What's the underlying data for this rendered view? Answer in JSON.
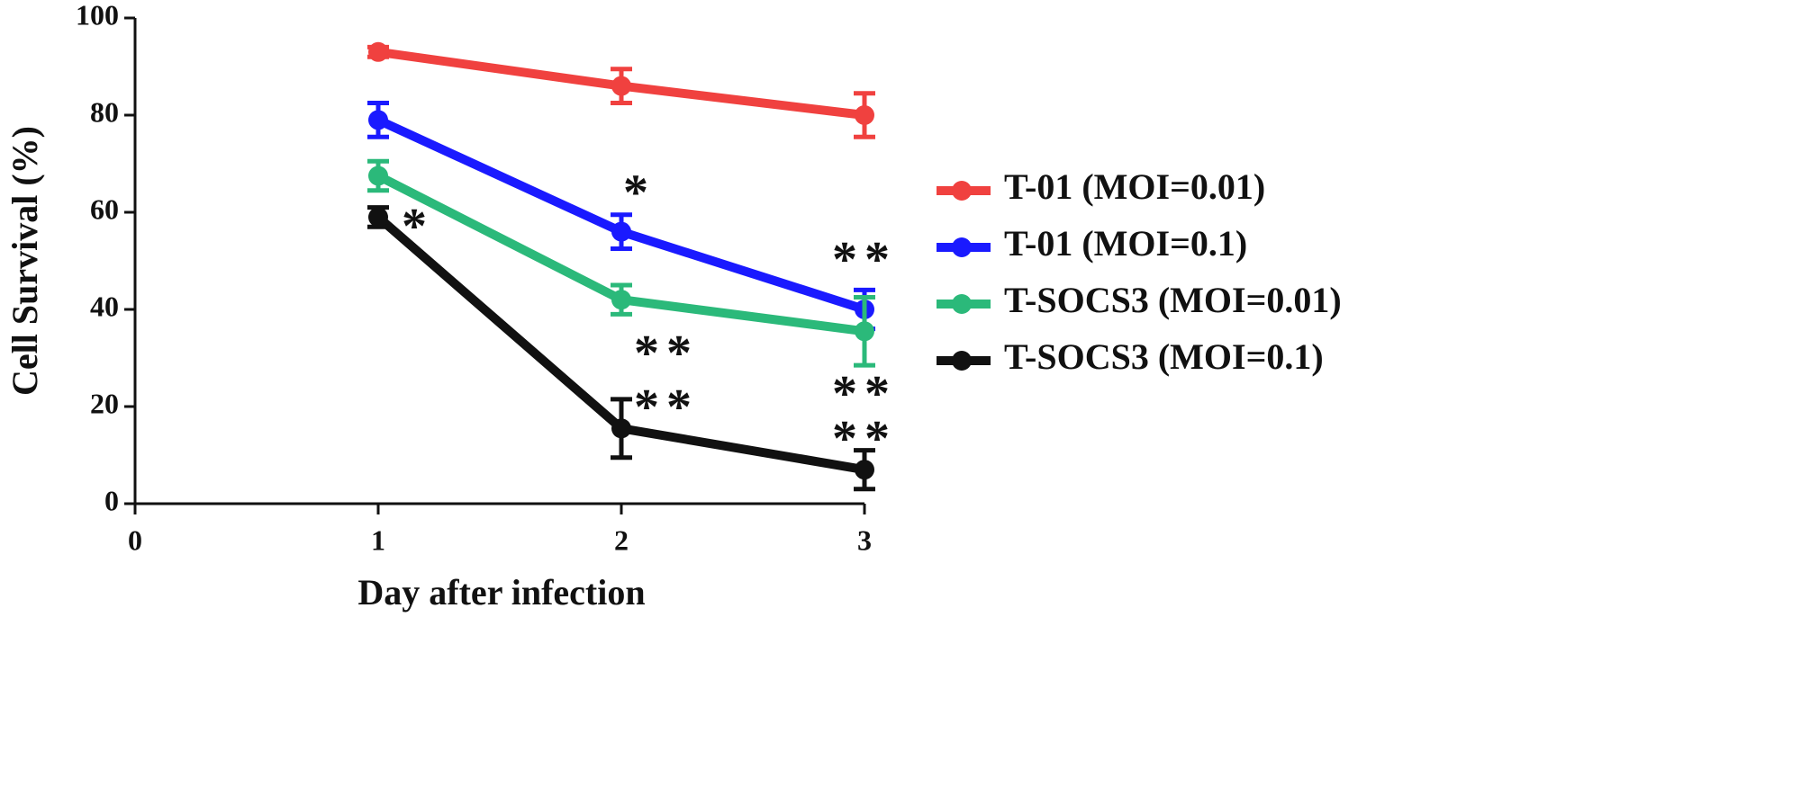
{
  "chart_data": {
    "type": "line",
    "x_label": "Day after infection",
    "y_label": "Cell Survival (%)",
    "x": [
      1,
      2,
      3
    ],
    "xlim": [
      0,
      3
    ],
    "xticks": [
      0,
      1,
      2,
      3
    ],
    "ylim": [
      0,
      100
    ],
    "yticks": [
      0,
      20,
      40,
      60,
      80,
      100
    ],
    "grid": false,
    "legend": "right",
    "series": [
      {
        "name": "T-01 (MOI=0.01)",
        "color": "#f0413f",
        "values": [
          93,
          86,
          80
        ],
        "errors": [
          1,
          3.5,
          4.5
        ],
        "significance": [
          null,
          null,
          null
        ]
      },
      {
        "name": "T-01 (MOI=0.1)",
        "color": "#1a1aff",
        "values": [
          79,
          56,
          40
        ],
        "errors": [
          3.5,
          3.5,
          4
        ],
        "significance": [
          null,
          "*",
          "**"
        ]
      },
      {
        "name": "T-SOCS3 (MOI=0.01)",
        "color": "#2bb97a",
        "values": [
          67.5,
          42,
          35.5
        ],
        "errors": [
          3,
          3,
          7
        ],
        "significance": [
          null,
          "**",
          "**"
        ]
      },
      {
        "name": "T-SOCS3 (MOI=0.1)",
        "color": "#111111",
        "values": [
          59,
          15.5,
          7
        ],
        "errors": [
          2,
          6,
          4
        ],
        "significance": [
          "*",
          "**",
          "**"
        ]
      }
    ]
  }
}
